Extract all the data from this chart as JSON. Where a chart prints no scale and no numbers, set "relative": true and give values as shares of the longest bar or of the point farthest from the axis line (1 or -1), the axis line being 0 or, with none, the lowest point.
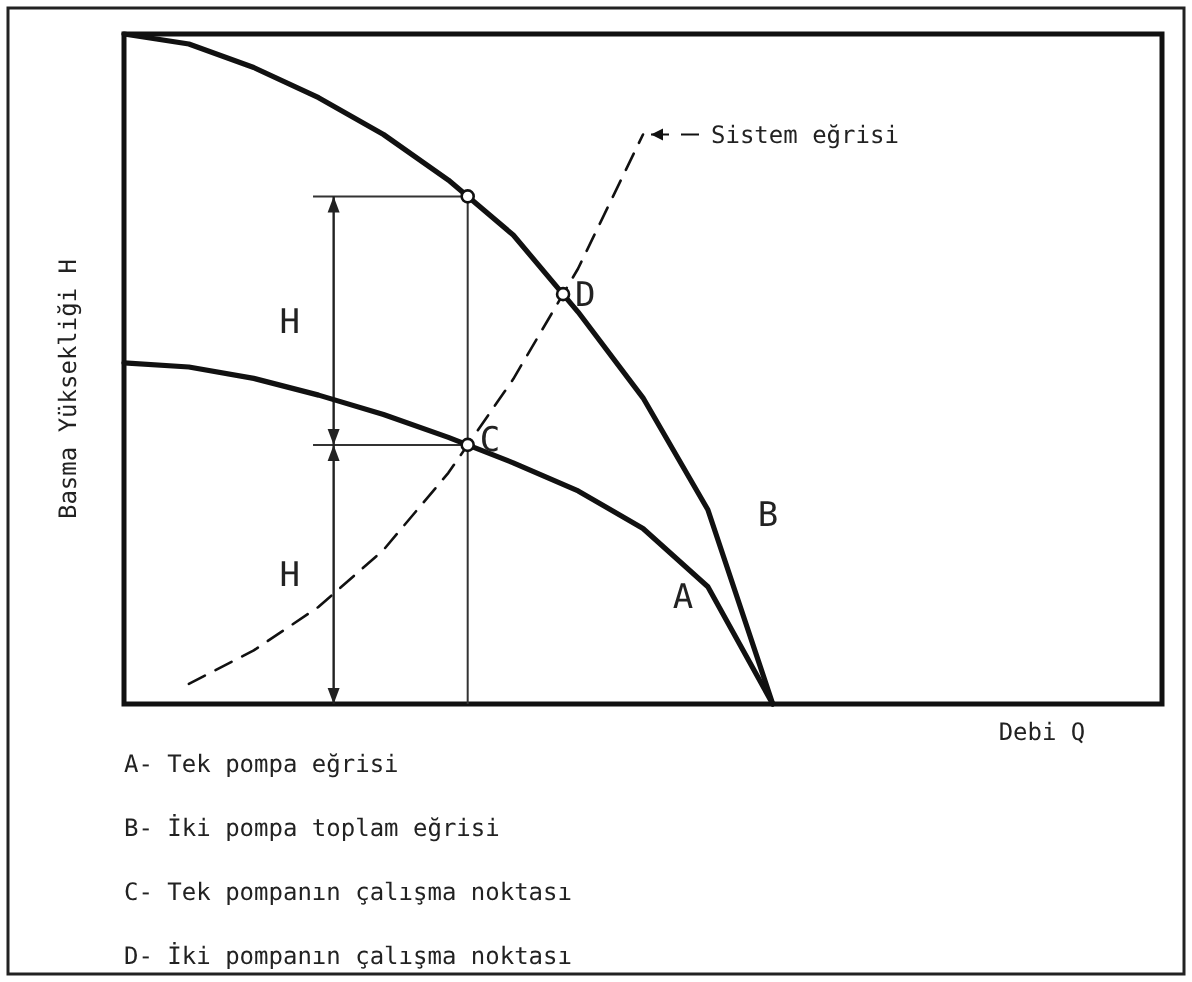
{
  "chart_data": {
    "type": "line",
    "relative": true,
    "xlabel": "Debi  Q",
    "ylabel": "Basma Yüksekliği  H",
    "categories": [
      null,
      null,
      null,
      null,
      null,
      null,
      null,
      null,
      null,
      null,
      null,
      null,
      null,
      null,
      null,
      null,
      null
    ],
    "series": [
      {
        "name": "A",
        "color": "#111111",
        "values": [
          0.509,
          0.503,
          0.486,
          0.461,
          0.432,
          0.398,
          0.36,
          0.318,
          0.262,
          0.175,
          0,
          null,
          null,
          null,
          null,
          null,
          null
        ]
      },
      {
        "name": "B",
        "color": "#111111",
        "values": [
          1,
          0.985,
          0.95,
          0.905,
          0.85,
          0.782,
          0.7,
          0.585,
          0.457,
          0.29,
          0,
          null,
          null,
          null,
          null,
          null,
          null
        ]
      },
      {
        "name": "Sistem eğrisi",
        "color": "#111111",
        "line_style": "dashed",
        "values": [
          null,
          0.03,
          0.08,
          0.145,
          0.23,
          0.345,
          0.485,
          0.65,
          0.85,
          null,
          null,
          null,
          null,
          null,
          null,
          null,
          null
        ]
      }
    ],
    "annotations": [
      "C",
      "D",
      "H",
      "H",
      "A- Tek pompa eğrisi",
      "B- İki pompa toplam eğrisi",
      "C- Tek pompanın çalışma noktası",
      "D- İki pompanın çalışma noktası"
    ]
  }
}
